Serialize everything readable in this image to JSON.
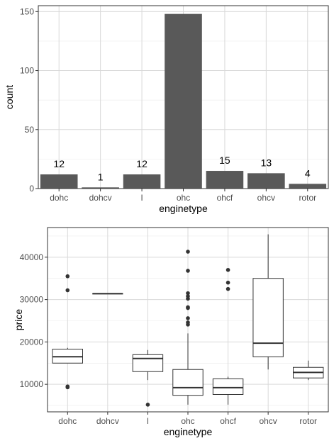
{
  "colors": {
    "bar_fill": "#595959",
    "panel_border": "#333333",
    "grid_major": "#d9d9d9",
    "grid_minor": "#ebebeb",
    "box_stroke": "#333333",
    "outlier": "#333333"
  },
  "chart_data": [
    {
      "type": "bar",
      "xlabel": "enginetype",
      "ylabel": "count",
      "categories": [
        "dohc",
        "dohcv",
        "l",
        "ohc",
        "ohcf",
        "ohcv",
        "rotor"
      ],
      "values": [
        12,
        1,
        12,
        148,
        15,
        13,
        4
      ],
      "data_labels": [
        "12",
        "1",
        "12",
        "",
        "15",
        "13",
        "4"
      ],
      "ylim": [
        0,
        155
      ],
      "yticks": [
        0,
        50,
        100,
        150
      ],
      "grid": true
    },
    {
      "type": "box",
      "xlabel": "enginetype",
      "ylabel": "price",
      "categories": [
        "dohc",
        "dohcv",
        "l",
        "ohc",
        "ohcf",
        "ohcv",
        "rotor"
      ],
      "ylim": [
        3500,
        47000
      ],
      "yticks": [
        10000,
        20000,
        30000,
        40000
      ],
      "grid": true,
      "boxes": [
        {
          "category": "dohc",
          "min": 15000,
          "q1": 15000,
          "median": 16500,
          "q3": 18300,
          "max": 18600,
          "outliers": [
            35500,
            32200,
            9300,
            9500
          ]
        },
        {
          "category": "dohcv",
          "min": 31400,
          "q1": 31400,
          "median": 31400,
          "q3": 31400,
          "max": 31400,
          "outliers": []
        },
        {
          "category": "l",
          "min": 11000,
          "q1": 13000,
          "median": 16100,
          "q3": 17000,
          "max": 18100,
          "outliers": [
            5200
          ]
        },
        {
          "category": "ohc",
          "min": 5200,
          "q1": 7400,
          "median": 9200,
          "q3": 13500,
          "max": 22000,
          "outliers": [
            41300,
            36800,
            31500,
            30800,
            30200,
            28200,
            28000,
            25600,
            24600,
            24100
          ]
        },
        {
          "category": "ohcf",
          "min": 5200,
          "q1": 7600,
          "median": 9200,
          "q3": 11300,
          "max": 11800,
          "outliers": [
            37000,
            34000,
            32500
          ]
        },
        {
          "category": "ohcv",
          "min": 13500,
          "q1": 16500,
          "median": 19700,
          "q3": 35000,
          "max": 45400,
          "outliers": []
        },
        {
          "category": "rotor",
          "min": 11000,
          "q1": 11500,
          "median": 12800,
          "q3": 14000,
          "max": 15600,
          "outliers": []
        }
      ]
    }
  ]
}
